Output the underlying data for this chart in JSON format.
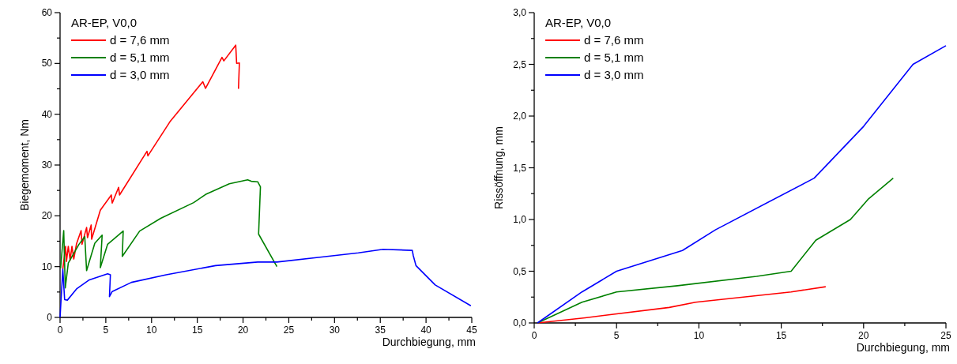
{
  "chart_data": [
    {
      "type": "line",
      "xlabel": "Durchbiegung, mm",
      "ylabel": "Biegemoment, Nm",
      "legend_title": "AR-EP, V0,0",
      "legend": "top left",
      "grid": false,
      "xlim": [
        0,
        45
      ],
      "ylim": [
        0,
        60
      ],
      "xticks": [
        0,
        {
          "value": 2.5,
          "label": null
        },
        5,
        {
          "value": 7.5,
          "label": null
        },
        10,
        {
          "value": 12.5,
          "label": null
        },
        15,
        {
          "value": 17.5,
          "label": null
        },
        20,
        {
          "value": 22.5,
          "label": null
        },
        25,
        {
          "value": 27.5,
          "label": null
        },
        30,
        {
          "value": 32.5,
          "label": null
        },
        35,
        {
          "value": 37.5,
          "label": null
        },
        40,
        {
          "value": 42.5,
          "label": null
        },
        45
      ],
      "yticks": [
        0,
        {
          "value": 5,
          "label": null
        },
        10,
        {
          "value": 15,
          "label": null
        },
        20,
        {
          "value": 25,
          "label": null
        },
        30,
        {
          "value": 35,
          "label": null
        },
        40,
        {
          "value": 45,
          "label": null
        },
        50,
        {
          "value": 55,
          "label": null
        },
        60
      ],
      "series": [
        {
          "name": "d = 7,6 mm",
          "color": "#ff0000",
          "x": [
            0.3,
            0.6,
            0.7,
            0.9,
            1.1,
            1.3,
            1.5,
            1.8,
            2.3,
            2.4,
            2.9,
            3.0,
            3.4,
            3.45,
            4.4,
            5.6,
            5.7,
            6.4,
            6.5,
            9.5,
            9.6,
            12,
            15.6,
            15.9,
            17.7,
            17.9,
            19.2,
            19.3,
            19.6,
            19.5
          ],
          "values": [
            9.5,
            14,
            11,
            14,
            11.3,
            14,
            11.5,
            14.5,
            17.1,
            14.4,
            17.7,
            15.7,
            18.2,
            15.4,
            21.1,
            24.1,
            22.5,
            25.6,
            24.1,
            32.7,
            31.8,
            38.5,
            46.4,
            45.1,
            51.2,
            50.5,
            53.6,
            50,
            50.1,
            45
          ]
        },
        {
          "name": "d = 5,1 mm",
          "color": "#008000",
          "x": [
            0.06,
            0.4,
            0.57,
            0.9,
            2.07,
            2.7,
            2.9,
            3.8,
            4.6,
            4.4,
            5.2,
            6.9,
            6.8,
            8.7,
            11,
            14.6,
            15.9,
            18.5,
            20.5,
            20.9,
            21.6,
            21.9,
            21.7,
            23.7
          ],
          "values": [
            9.7,
            17.1,
            5.8,
            10.7,
            14.4,
            15.9,
            9.2,
            14.6,
            16.2,
            9.8,
            14.4,
            17,
            12,
            17,
            19.5,
            22.6,
            24.2,
            26.3,
            27.1,
            26.8,
            26.7,
            25.7,
            16.4,
            10
          ]
        },
        {
          "name": "d = 3,0 mm",
          "color": "#0000ff",
          "x": [
            0,
            0.3,
            0.5,
            0.8,
            1.8,
            3.2,
            5.2,
            5.5,
            5.4,
            5.7,
            7.8,
            11.6,
            17,
            21.6,
            23.7,
            28.6,
            32.6,
            35.3,
            38.5,
            38.6,
            38.9,
            41,
            44.9
          ],
          "values": [
            0,
            9.5,
            3.5,
            3.4,
            5.6,
            7.4,
            8.6,
            8.4,
            4.1,
            5.1,
            6.9,
            8.4,
            10.2,
            10.9,
            10.9,
            11.9,
            12.7,
            13.4,
            13.2,
            12.2,
            10.2,
            6.4,
            2.3
          ]
        }
      ]
    },
    {
      "type": "line",
      "xlabel": "Durchbiegung, mm",
      "ylabel": "Rissöffnung, mm",
      "legend_title": "AR-EP, V0,0",
      "legend": "top left",
      "grid": false,
      "xlim": [
        0,
        25
      ],
      "ylim": [
        0,
        3
      ],
      "xticks": [
        0,
        {
          "value": 2.5,
          "label": null
        },
        5,
        {
          "value": 7.5,
          "label": null
        },
        10,
        {
          "value": 12.5,
          "label": null
        },
        15,
        {
          "value": 17.5,
          "label": null
        },
        20,
        {
          "value": 22.5,
          "label": null
        },
        25
      ],
      "yticks": [
        {
          "value": 0,
          "label": "0,0"
        },
        {
          "value": 0.25,
          "label": null
        },
        {
          "value": 0.5,
          "label": "0,5"
        },
        {
          "value": 0.75,
          "label": null
        },
        {
          "value": 1,
          "label": "1,0"
        },
        {
          "value": 1.25,
          "label": null
        },
        {
          "value": 1.5,
          "label": "1,5"
        },
        {
          "value": 1.75,
          "label": null
        },
        {
          "value": 2,
          "label": "2,0"
        },
        {
          "value": 2.25,
          "label": null
        },
        {
          "value": 2.5,
          "label": "2,5"
        },
        {
          "value": 2.75,
          "label": null
        },
        {
          "value": 3,
          "label": "3,0"
        }
      ],
      "series": [
        {
          "name": "d = 7,6 mm",
          "color": "#ff0000",
          "x": [
            0.2,
            3.1,
            8.2,
            9.8,
            15.6,
            17.7
          ],
          "values": [
            0,
            0.05,
            0.15,
            0.2,
            0.3,
            0.35
          ]
        },
        {
          "name": "d = 5,1 mm",
          "color": "#008000",
          "x": [
            0.2,
            2.9,
            5,
            8.7,
            13.5,
            15.6,
            17.1,
            19.2,
            20.3,
            21.8
          ],
          "values": [
            0,
            0.2,
            0.3,
            0.36,
            0.45,
            0.5,
            0.8,
            1,
            1.2,
            1.4
          ]
        },
        {
          "name": "d = 3,0 mm",
          "color": "#0000ff",
          "x": [
            0.2,
            2.9,
            5,
            9,
            11,
            17,
            20,
            23,
            25
          ],
          "values": [
            0,
            0.3,
            0.5,
            0.7,
            0.9,
            1.4,
            1.9,
            2.5,
            2.68
          ]
        }
      ]
    }
  ]
}
